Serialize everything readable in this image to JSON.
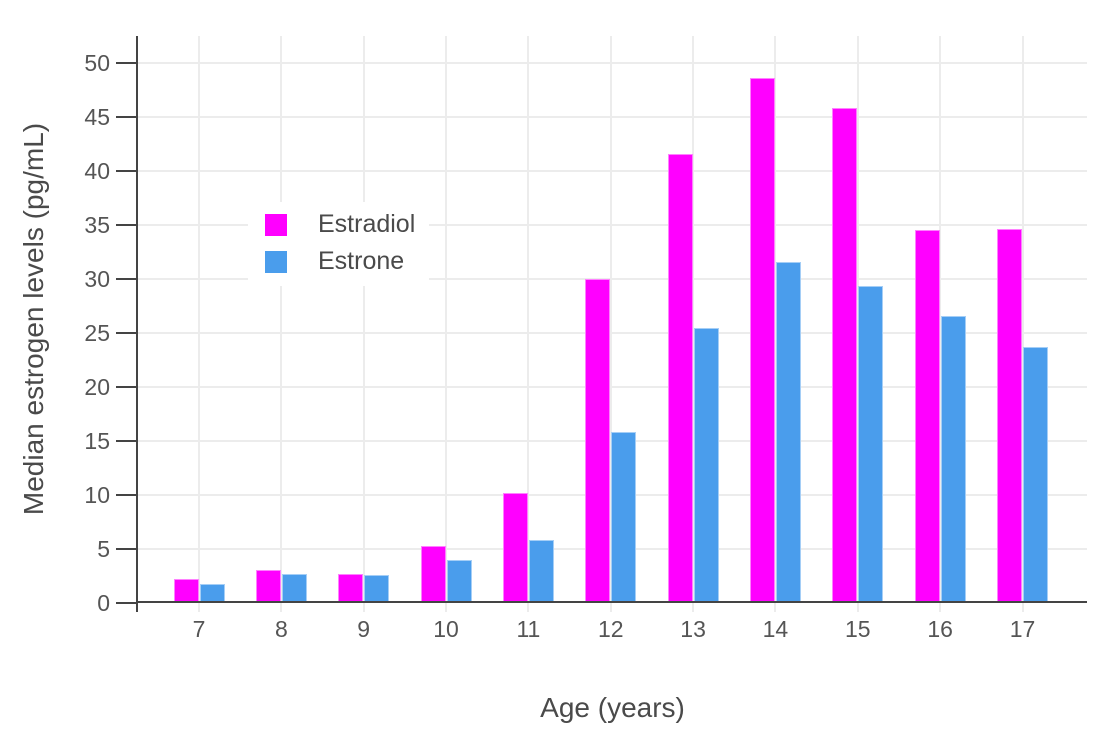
{
  "chart_data": {
    "type": "bar",
    "title": "",
    "xlabel": "Age (years)",
    "ylabel": "Median estrogen levels (pg/mL)",
    "categories": [
      "7",
      "8",
      "9",
      "10",
      "11",
      "12",
      "13",
      "14",
      "15",
      "16",
      "17"
    ],
    "series": [
      {
        "name": "Estradiol",
        "color": "#ff00ff",
        "values": [
          2.2,
          3.1,
          2.7,
          5.3,
          10.2,
          30.0,
          41.6,
          48.6,
          45.8,
          34.5,
          34.6
        ]
      },
      {
        "name": "Estrone",
        "color": "#4a9dec",
        "values": [
          1.8,
          2.7,
          2.6,
          4.0,
          5.8,
          15.8,
          25.5,
          31.6,
          29.4,
          26.6,
          23.7
        ]
      }
    ],
    "ylim": [
      0,
      52.5
    ],
    "yticks": [
      0,
      5,
      10,
      15,
      20,
      25,
      30,
      35,
      40,
      45,
      50
    ],
    "grid": true,
    "legend_position": "inside-top-left",
    "style": {
      "background": "#ffffff",
      "axis_color": "#444444",
      "grid_color": "#ececec",
      "tick_label_color": "#555555",
      "axis_title_color": "#4a4a4a"
    }
  }
}
